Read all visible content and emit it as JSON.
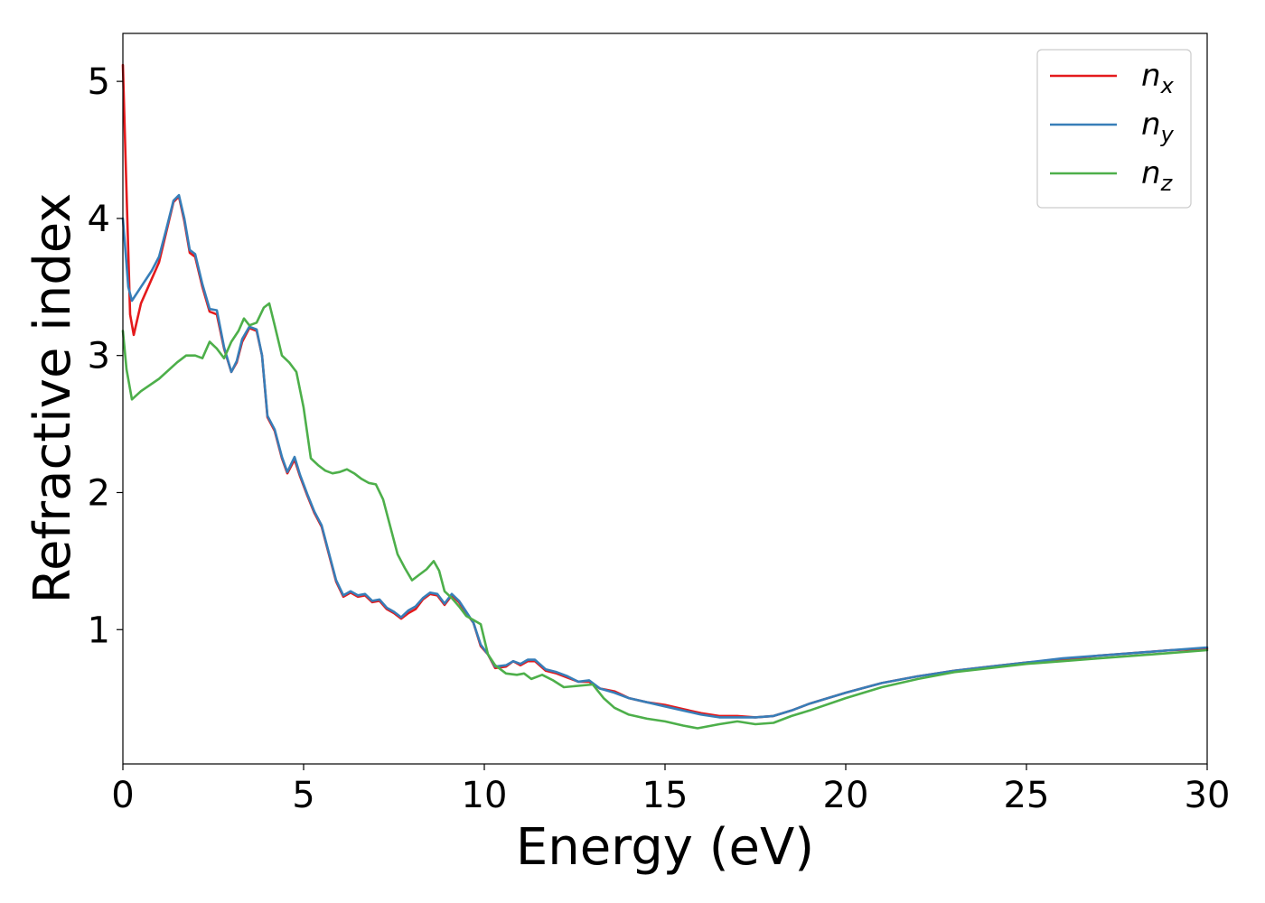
{
  "chart_data": {
    "type": "line",
    "xlabel": "Energy (eV)",
    "ylabel": "Refractive index",
    "xlim": [
      0,
      30
    ],
    "ylim": [
      0.02,
      5.35
    ],
    "x_ticks": [
      "0",
      "5",
      "10",
      "15",
      "20",
      "25",
      "30"
    ],
    "y_ticks": [
      "1",
      "2",
      "3",
      "4",
      "5"
    ],
    "grid": false,
    "legend_position": "top-right",
    "series": [
      {
        "name": "n_x",
        "label_base": "n",
        "label_sub": "x",
        "color": "#e41a1c",
        "points": [
          [
            0,
            5.12
          ],
          [
            0.1,
            4.2
          ],
          [
            0.2,
            3.3
          ],
          [
            0.3,
            3.15
          ],
          [
            0.5,
            3.38
          ],
          [
            0.7,
            3.5
          ],
          [
            1.0,
            3.68
          ],
          [
            1.2,
            3.9
          ],
          [
            1.4,
            4.12
          ],
          [
            1.55,
            4.16
          ],
          [
            1.7,
            3.98
          ],
          [
            1.85,
            3.75
          ],
          [
            2.0,
            3.72
          ],
          [
            2.2,
            3.5
          ],
          [
            2.4,
            3.32
          ],
          [
            2.6,
            3.3
          ],
          [
            2.8,
            3.05
          ],
          [
            3.0,
            2.88
          ],
          [
            3.15,
            2.95
          ],
          [
            3.3,
            3.1
          ],
          [
            3.5,
            3.2
          ],
          [
            3.7,
            3.18
          ],
          [
            3.85,
            3.0
          ],
          [
            4.0,
            2.55
          ],
          [
            4.2,
            2.45
          ],
          [
            4.4,
            2.25
          ],
          [
            4.55,
            2.14
          ],
          [
            4.75,
            2.24
          ],
          [
            4.9,
            2.12
          ],
          [
            5.1,
            1.98
          ],
          [
            5.3,
            1.85
          ],
          [
            5.5,
            1.75
          ],
          [
            5.7,
            1.55
          ],
          [
            5.9,
            1.35
          ],
          [
            6.1,
            1.24
          ],
          [
            6.3,
            1.27
          ],
          [
            6.5,
            1.24
          ],
          [
            6.7,
            1.25
          ],
          [
            6.9,
            1.2
          ],
          [
            7.1,
            1.21
          ],
          [
            7.3,
            1.15
          ],
          [
            7.5,
            1.12
          ],
          [
            7.7,
            1.08
          ],
          [
            7.9,
            1.12
          ],
          [
            8.1,
            1.15
          ],
          [
            8.3,
            1.22
          ],
          [
            8.5,
            1.26
          ],
          [
            8.7,
            1.25
          ],
          [
            8.9,
            1.18
          ],
          [
            9.1,
            1.25
          ],
          [
            9.3,
            1.2
          ],
          [
            9.5,
            1.12
          ],
          [
            9.7,
            1.05
          ],
          [
            9.9,
            0.88
          ],
          [
            10.1,
            0.82
          ],
          [
            10.3,
            0.72
          ],
          [
            10.6,
            0.73
          ],
          [
            10.8,
            0.77
          ],
          [
            11.0,
            0.74
          ],
          [
            11.2,
            0.77
          ],
          [
            11.4,
            0.77
          ],
          [
            11.7,
            0.7
          ],
          [
            12.0,
            0.68
          ],
          [
            12.3,
            0.65
          ],
          [
            12.6,
            0.62
          ],
          [
            12.9,
            0.62
          ],
          [
            13.2,
            0.57
          ],
          [
            13.6,
            0.55
          ],
          [
            14.0,
            0.5
          ],
          [
            14.5,
            0.47
          ],
          [
            15.0,
            0.45
          ],
          [
            15.5,
            0.42
          ],
          [
            16.0,
            0.39
          ],
          [
            16.5,
            0.37
          ],
          [
            17.0,
            0.37
          ],
          [
            17.5,
            0.36
          ],
          [
            18.0,
            0.37
          ],
          [
            18.5,
            0.41
          ],
          [
            19.0,
            0.46
          ],
          [
            20.0,
            0.54
          ],
          [
            21.0,
            0.61
          ],
          [
            22.0,
            0.66
          ],
          [
            23.0,
            0.7
          ],
          [
            24.0,
            0.73
          ],
          [
            25.0,
            0.76
          ],
          [
            26.0,
            0.78
          ],
          [
            27.0,
            0.81
          ],
          [
            28.0,
            0.83
          ],
          [
            29.0,
            0.85
          ],
          [
            30.0,
            0.86
          ]
        ]
      },
      {
        "name": "n_y",
        "label_base": "n",
        "label_sub": "y",
        "color": "#377eb8",
        "points": [
          [
            0,
            4.0
          ],
          [
            0.15,
            3.5
          ],
          [
            0.25,
            3.4
          ],
          [
            0.5,
            3.5
          ],
          [
            0.8,
            3.62
          ],
          [
            1.0,
            3.72
          ],
          [
            1.2,
            3.92
          ],
          [
            1.4,
            4.13
          ],
          [
            1.55,
            4.17
          ],
          [
            1.7,
            4.0
          ],
          [
            1.85,
            3.77
          ],
          [
            2.0,
            3.74
          ],
          [
            2.2,
            3.52
          ],
          [
            2.4,
            3.34
          ],
          [
            2.6,
            3.33
          ],
          [
            2.8,
            3.06
          ],
          [
            3.0,
            2.88
          ],
          [
            3.15,
            2.96
          ],
          [
            3.3,
            3.12
          ],
          [
            3.5,
            3.21
          ],
          [
            3.7,
            3.19
          ],
          [
            3.85,
            3.0
          ],
          [
            4.0,
            2.56
          ],
          [
            4.2,
            2.46
          ],
          [
            4.4,
            2.26
          ],
          [
            4.55,
            2.15
          ],
          [
            4.75,
            2.26
          ],
          [
            4.9,
            2.13
          ],
          [
            5.1,
            1.99
          ],
          [
            5.3,
            1.86
          ],
          [
            5.5,
            1.76
          ],
          [
            5.7,
            1.56
          ],
          [
            5.9,
            1.36
          ],
          [
            6.1,
            1.25
          ],
          [
            6.3,
            1.28
          ],
          [
            6.5,
            1.25
          ],
          [
            6.7,
            1.26
          ],
          [
            6.9,
            1.21
          ],
          [
            7.1,
            1.22
          ],
          [
            7.3,
            1.16
          ],
          [
            7.5,
            1.13
          ],
          [
            7.7,
            1.09
          ],
          [
            7.9,
            1.14
          ],
          [
            8.1,
            1.17
          ],
          [
            8.3,
            1.23
          ],
          [
            8.5,
            1.27
          ],
          [
            8.7,
            1.26
          ],
          [
            8.9,
            1.19
          ],
          [
            9.1,
            1.26
          ],
          [
            9.3,
            1.21
          ],
          [
            9.5,
            1.13
          ],
          [
            9.7,
            1.05
          ],
          [
            9.9,
            0.89
          ],
          [
            10.1,
            0.82
          ],
          [
            10.3,
            0.73
          ],
          [
            10.6,
            0.74
          ],
          [
            10.8,
            0.77
          ],
          [
            11.0,
            0.75
          ],
          [
            11.2,
            0.78
          ],
          [
            11.4,
            0.78
          ],
          [
            11.7,
            0.71
          ],
          [
            12.0,
            0.69
          ],
          [
            12.3,
            0.66
          ],
          [
            12.6,
            0.62
          ],
          [
            12.9,
            0.63
          ],
          [
            13.2,
            0.57
          ],
          [
            13.6,
            0.54
          ],
          [
            14.0,
            0.5
          ],
          [
            14.5,
            0.47
          ],
          [
            15.0,
            0.44
          ],
          [
            15.5,
            0.41
          ],
          [
            16.0,
            0.38
          ],
          [
            16.5,
            0.36
          ],
          [
            17.0,
            0.36
          ],
          [
            17.5,
            0.36
          ],
          [
            18.0,
            0.37
          ],
          [
            18.5,
            0.41
          ],
          [
            19.0,
            0.46
          ],
          [
            20.0,
            0.54
          ],
          [
            21.0,
            0.61
          ],
          [
            22.0,
            0.66
          ],
          [
            23.0,
            0.7
          ],
          [
            24.0,
            0.73
          ],
          [
            25.0,
            0.76
          ],
          [
            26.0,
            0.79
          ],
          [
            27.0,
            0.81
          ],
          [
            28.0,
            0.83
          ],
          [
            29.0,
            0.85
          ],
          [
            30.0,
            0.87
          ]
        ]
      },
      {
        "name": "n_z",
        "label_base": "n",
        "label_sub": "z",
        "color": "#4daf4a",
        "points": [
          [
            0,
            3.18
          ],
          [
            0.1,
            2.9
          ],
          [
            0.25,
            2.68
          ],
          [
            0.5,
            2.74
          ],
          [
            1.0,
            2.83
          ],
          [
            1.5,
            2.95
          ],
          [
            1.75,
            3.0
          ],
          [
            2.0,
            3.0
          ],
          [
            2.2,
            2.98
          ],
          [
            2.4,
            3.1
          ],
          [
            2.6,
            3.05
          ],
          [
            2.8,
            2.98
          ],
          [
            3.0,
            3.1
          ],
          [
            3.2,
            3.18
          ],
          [
            3.35,
            3.27
          ],
          [
            3.5,
            3.22
          ],
          [
            3.7,
            3.24
          ],
          [
            3.9,
            3.35
          ],
          [
            4.05,
            3.38
          ],
          [
            4.2,
            3.22
          ],
          [
            4.4,
            3.0
          ],
          [
            4.6,
            2.95
          ],
          [
            4.8,
            2.88
          ],
          [
            5.0,
            2.62
          ],
          [
            5.2,
            2.25
          ],
          [
            5.4,
            2.2
          ],
          [
            5.6,
            2.16
          ],
          [
            5.8,
            2.14
          ],
          [
            6.0,
            2.15
          ],
          [
            6.2,
            2.17
          ],
          [
            6.4,
            2.14
          ],
          [
            6.6,
            2.1
          ],
          [
            6.8,
            2.07
          ],
          [
            7.0,
            2.06
          ],
          [
            7.2,
            1.95
          ],
          [
            7.4,
            1.75
          ],
          [
            7.6,
            1.55
          ],
          [
            7.8,
            1.45
          ],
          [
            8.0,
            1.36
          ],
          [
            8.2,
            1.4
          ],
          [
            8.4,
            1.44
          ],
          [
            8.6,
            1.5
          ],
          [
            8.75,
            1.43
          ],
          [
            8.9,
            1.28
          ],
          [
            9.1,
            1.23
          ],
          [
            9.3,
            1.17
          ],
          [
            9.5,
            1.1
          ],
          [
            9.7,
            1.07
          ],
          [
            9.9,
            1.04
          ],
          [
            10.1,
            0.82
          ],
          [
            10.3,
            0.74
          ],
          [
            10.6,
            0.68
          ],
          [
            10.9,
            0.67
          ],
          [
            11.1,
            0.68
          ],
          [
            11.3,
            0.64
          ],
          [
            11.6,
            0.67
          ],
          [
            11.9,
            0.63
          ],
          [
            12.2,
            0.58
          ],
          [
            12.6,
            0.59
          ],
          [
            13.0,
            0.6
          ],
          [
            13.3,
            0.5
          ],
          [
            13.6,
            0.43
          ],
          [
            14.0,
            0.38
          ],
          [
            14.5,
            0.35
          ],
          [
            15.0,
            0.33
          ],
          [
            15.5,
            0.3
          ],
          [
            15.9,
            0.28
          ],
          [
            16.5,
            0.31
          ],
          [
            17.0,
            0.33
          ],
          [
            17.5,
            0.31
          ],
          [
            18.0,
            0.32
          ],
          [
            18.5,
            0.37
          ],
          [
            19.0,
            0.41
          ],
          [
            20.0,
            0.5
          ],
          [
            21.0,
            0.58
          ],
          [
            22.0,
            0.64
          ],
          [
            23.0,
            0.69
          ],
          [
            24.0,
            0.72
          ],
          [
            25.0,
            0.75
          ],
          [
            26.0,
            0.77
          ],
          [
            27.0,
            0.79
          ],
          [
            28.0,
            0.81
          ],
          [
            29.0,
            0.83
          ],
          [
            30.0,
            0.85
          ]
        ]
      }
    ]
  }
}
